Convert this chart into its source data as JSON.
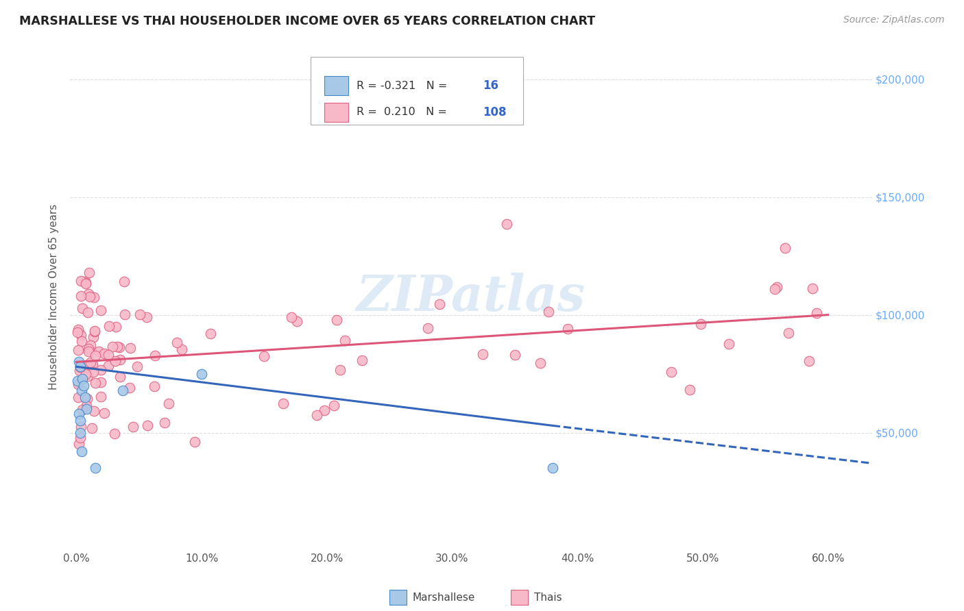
{
  "title": "MARSHALLESE VS THAI HOUSEHOLDER INCOME OVER 65 YEARS CORRELATION CHART",
  "source": "Source: ZipAtlas.com",
  "ylabel": "Householder Income Over 65 years",
  "xlabel_ticks": [
    "0.0%",
    "10.0%",
    "20.0%",
    "30.0%",
    "40.0%",
    "50.0%",
    "60.0%"
  ],
  "ytick_labels": [
    "$50,000",
    "$100,000",
    "$150,000",
    "$200,000"
  ],
  "ytick_vals": [
    50000,
    100000,
    150000,
    200000
  ],
  "ylim": [
    0,
    215000
  ],
  "xlim": [
    -0.005,
    0.635
  ],
  "watermark": "ZIPatlas",
  "legend_blue_r": "-0.321",
  "legend_blue_n": "16",
  "legend_pink_r": "0.210",
  "legend_pink_n": "108",
  "blue_scatter_color": "#a8c8e8",
  "blue_edge_color": "#4488cc",
  "pink_scatter_color": "#f8b8c8",
  "pink_edge_color": "#e06080",
  "line_blue_color": "#3366bb",
  "line_pink_color": "#dd5577",
  "grid_color": "#dddddd",
  "title_color": "#222222",
  "source_color": "#999999",
  "tick_color": "#555555",
  "ylabel_color": "#555555",
  "right_tick_color": "#66aaff",
  "watermark_color": "#c8dff0",
  "legend_border_color": "#aaaaaa",
  "blue_line_start_x": 0.0,
  "blue_line_end_x": 0.38,
  "blue_line_dash_end_x": 0.635,
  "blue_line_y_at_0": 78000,
  "blue_line_y_at_038": 53000,
  "blue_line_y_at_063": 37000,
  "pink_line_y_at_0": 80000,
  "pink_line_y_at_06": 100000
}
